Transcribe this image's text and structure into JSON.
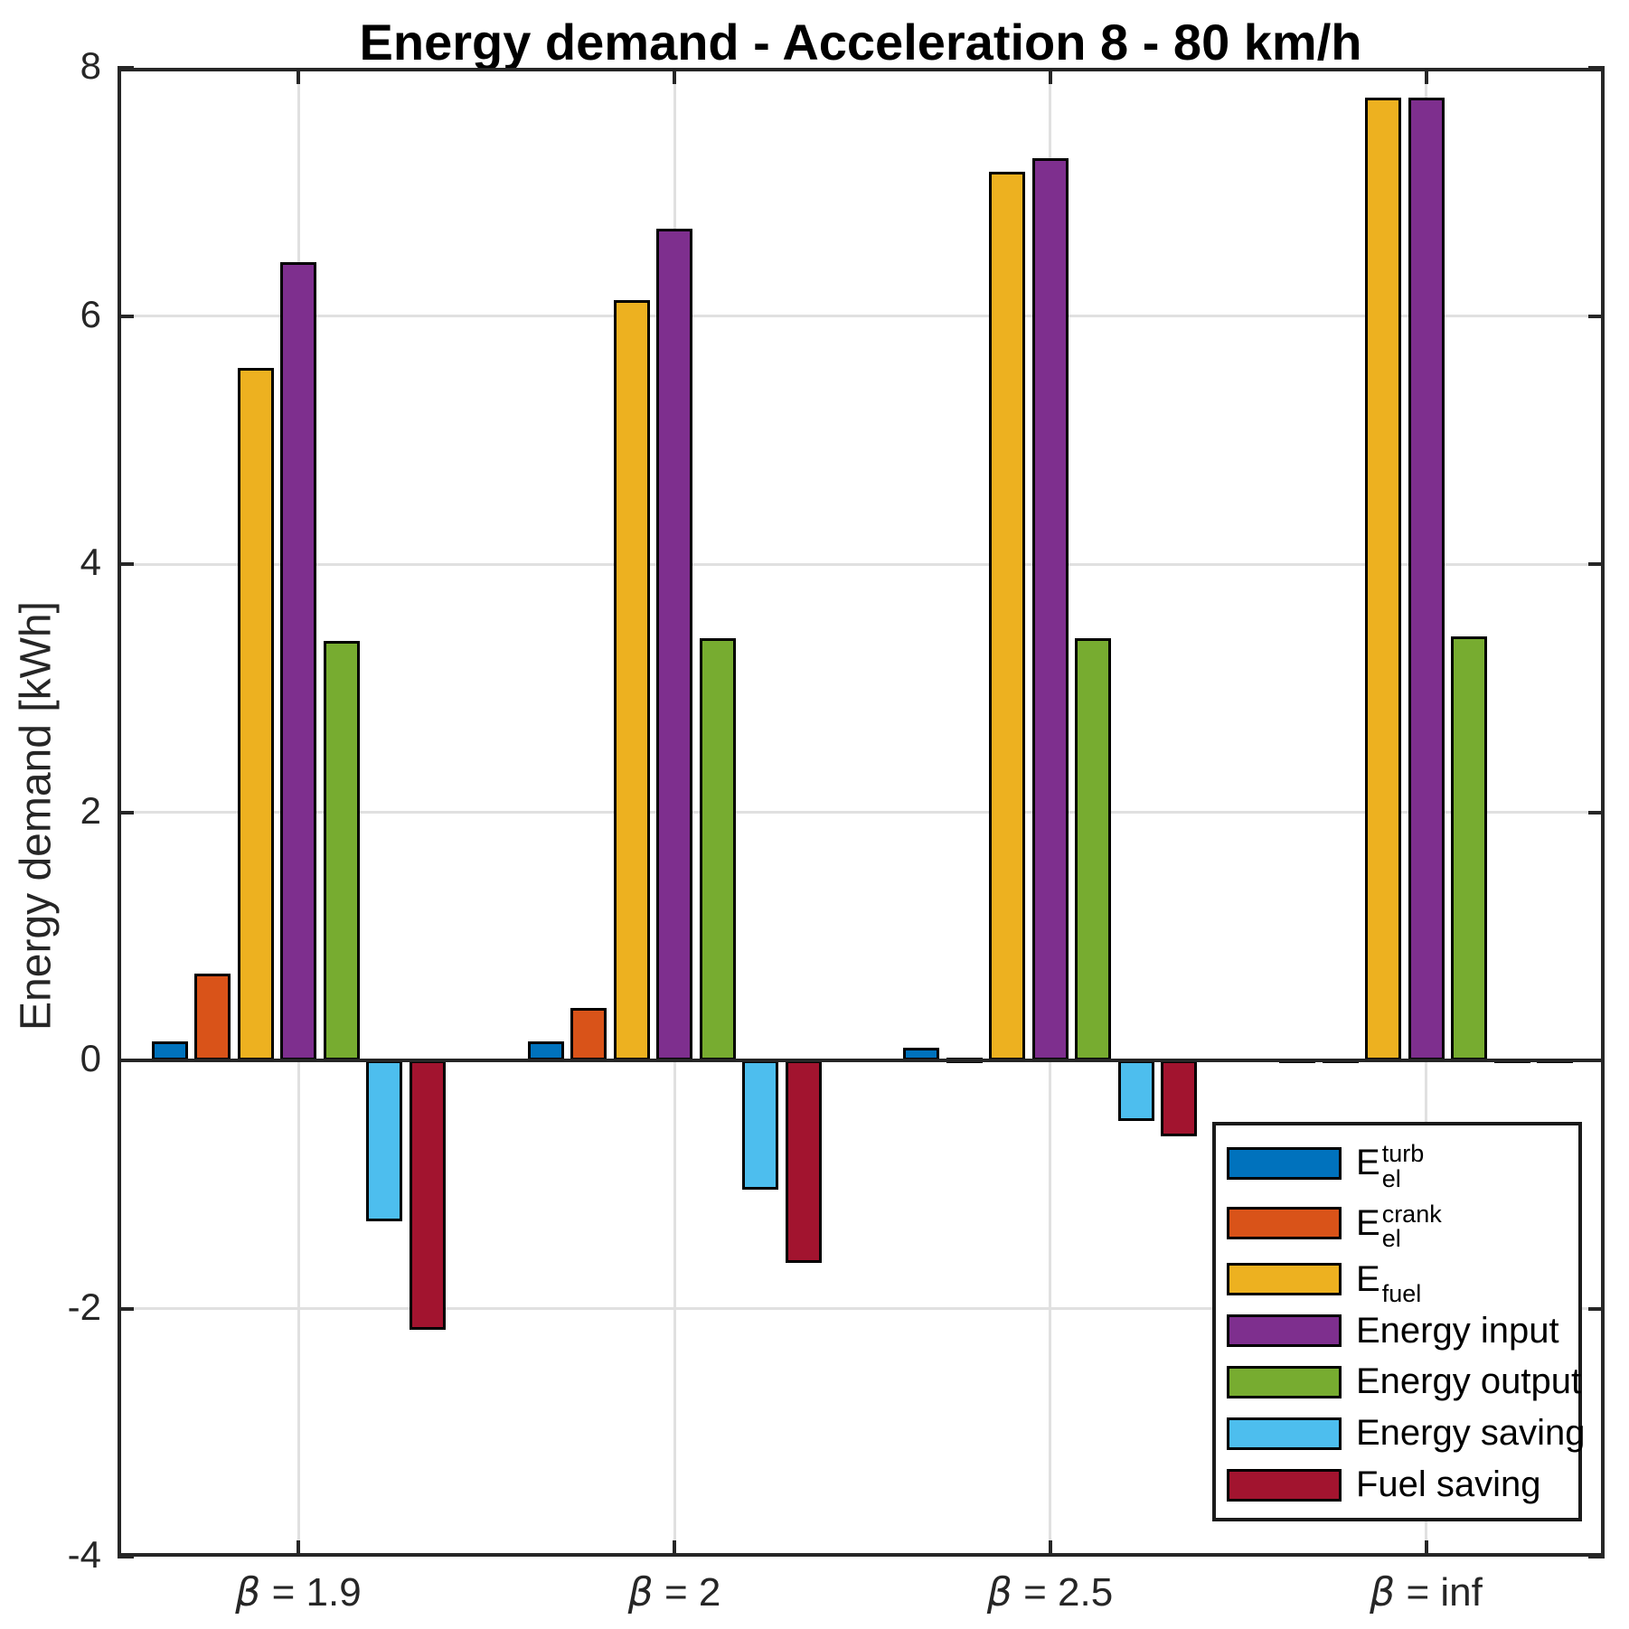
{
  "chart_data": {
    "type": "bar",
    "title": "Energy demand - Acceleration 8 - 80 km/h",
    "ylabel": "Energy demand [kWh]",
    "ylim": [
      -4,
      8
    ],
    "yticks": [
      8,
      6,
      4,
      2,
      0,
      -2,
      -4
    ],
    "ytick_labels": [
      "8",
      "6",
      "4",
      "2",
      "0",
      "-2",
      "-4"
    ],
    "grid": true,
    "categories": [
      "β = 1.9",
      "β = 2",
      "β = 2.5",
      "β = inf"
    ],
    "series": [
      {
        "name": "E_el_turb",
        "color": "#0072BD",
        "values": [
          0.15,
          0.15,
          0.1,
          0
        ]
      },
      {
        "name": "E_el_crank",
        "color": "#D95319",
        "values": [
          0.7,
          0.42,
          0.02,
          0
        ]
      },
      {
        "name": "E_fuel",
        "color": "#EDB120",
        "values": [
          5.58,
          6.13,
          7.16,
          7.76
        ]
      },
      {
        "name": "Energy input",
        "color": "#7E2F8E",
        "values": [
          6.43,
          6.7,
          7.27,
          7.76
        ]
      },
      {
        "name": "Energy output",
        "color": "#77AC30",
        "values": [
          3.38,
          3.4,
          3.4,
          3.42
        ]
      },
      {
        "name": "Energy saving",
        "color": "#4DBEEE",
        "values": [
          -1.3,
          -1.04,
          -0.49,
          0
        ]
      },
      {
        "name": "Fuel saving",
        "color": "#A2142F",
        "values": [
          -2.17,
          -1.63,
          -0.61,
          0
        ]
      }
    ],
    "legend": {
      "position": "lower-right",
      "entries": [
        {
          "main": "E",
          "sup": "turb",
          "sub": "el",
          "color": "#0072BD"
        },
        {
          "main": "E",
          "sup": "crank",
          "sub": "el",
          "color": "#D95319"
        },
        {
          "main": "E",
          "sub": "fuel",
          "color": "#EDB120"
        },
        {
          "text": "Energy input",
          "color": "#7E2F8E"
        },
        {
          "text": "Energy output",
          "color": "#77AC30"
        },
        {
          "text": "Energy saving",
          "color": "#4DBEEE"
        },
        {
          "text": "Fuel saving",
          "color": "#A2142F"
        }
      ]
    }
  },
  "colors": {
    "axis": "#262626",
    "grid": "#e0e0e0",
    "background": "#ffffff",
    "bar_edge": "#000000"
  }
}
